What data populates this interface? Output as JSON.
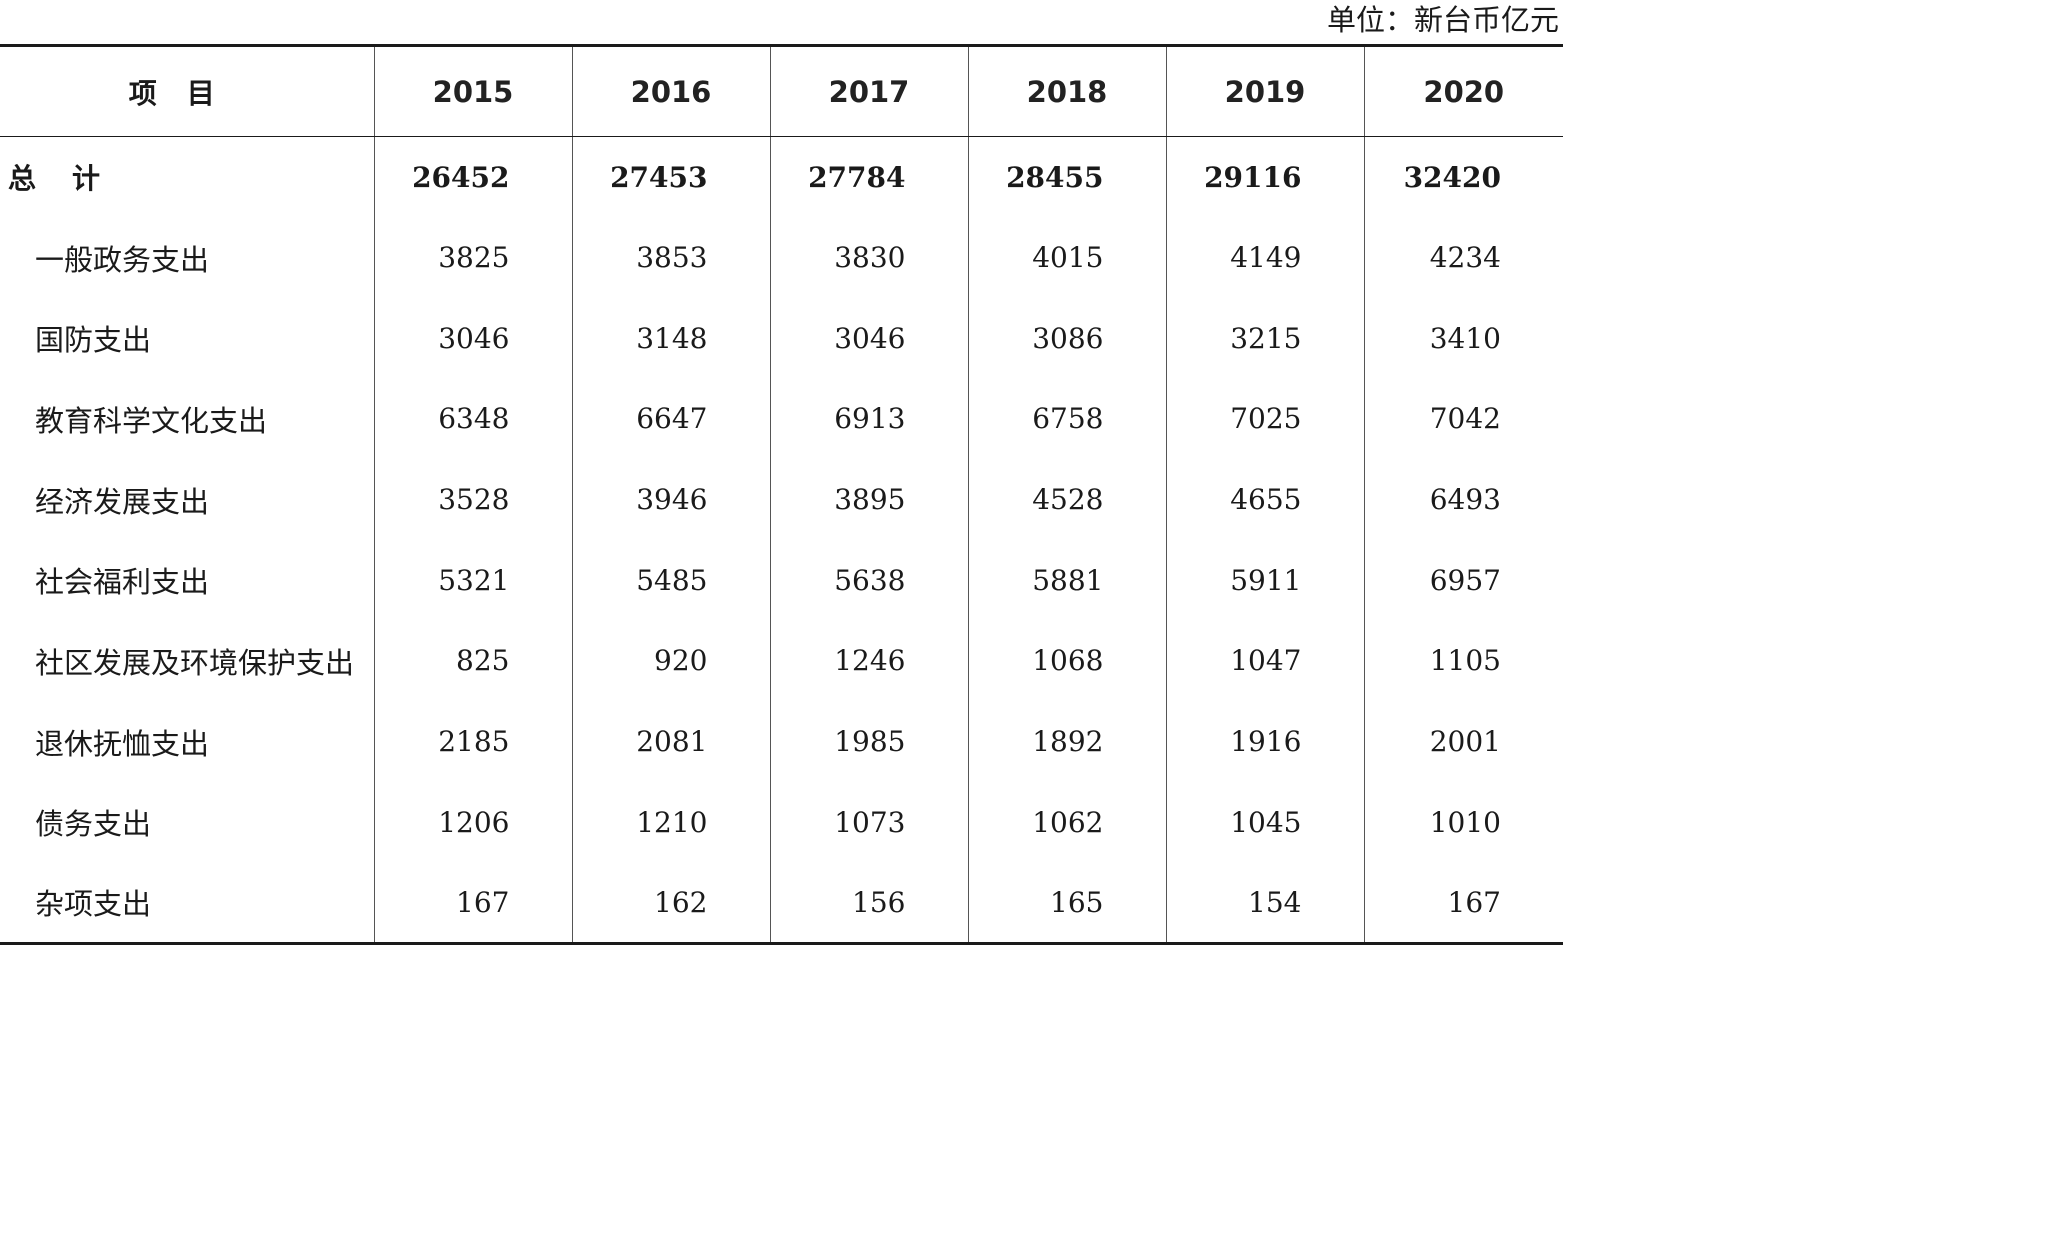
{
  "unit_label": "单位：新台币亿元",
  "header": {
    "item_label": "项目",
    "years": [
      "2015",
      "2016",
      "2017",
      "2018",
      "2019",
      "2020"
    ]
  },
  "rows": [
    {
      "label": "总计",
      "values": [
        "26452",
        "27453",
        "27784",
        "28455",
        "29116",
        "32420"
      ]
    },
    {
      "label": "一般政务支出",
      "values": [
        "3825",
        "3853",
        "3830",
        "4015",
        "4149",
        "4234"
      ]
    },
    {
      "label": "国防支出",
      "values": [
        "3046",
        "3148",
        "3046",
        "3086",
        "3215",
        "3410"
      ]
    },
    {
      "label": "教育科学文化支出",
      "values": [
        "6348",
        "6647",
        "6913",
        "6758",
        "7025",
        "7042"
      ]
    },
    {
      "label": "经济发展支出",
      "values": [
        "3528",
        "3946",
        "3895",
        "4528",
        "4655",
        "6493"
      ]
    },
    {
      "label": "社会福利支出",
      "values": [
        "5321",
        "5485",
        "5638",
        "5881",
        "5911",
        "6957"
      ]
    },
    {
      "label": "社区发展及环境保护支出",
      "values": [
        "825",
        "920",
        "1246",
        "1068",
        "1047",
        "1105"
      ]
    },
    {
      "label": "退休抚恤支出",
      "values": [
        "2185",
        "2081",
        "1985",
        "1892",
        "1916",
        "2001"
      ]
    },
    {
      "label": "债务支出",
      "values": [
        "1206",
        "1210",
        "1073",
        "1062",
        "1045",
        "1010"
      ]
    },
    {
      "label": "杂项支出",
      "values": [
        "167",
        "162",
        "156",
        "165",
        "154",
        "167"
      ]
    }
  ]
}
